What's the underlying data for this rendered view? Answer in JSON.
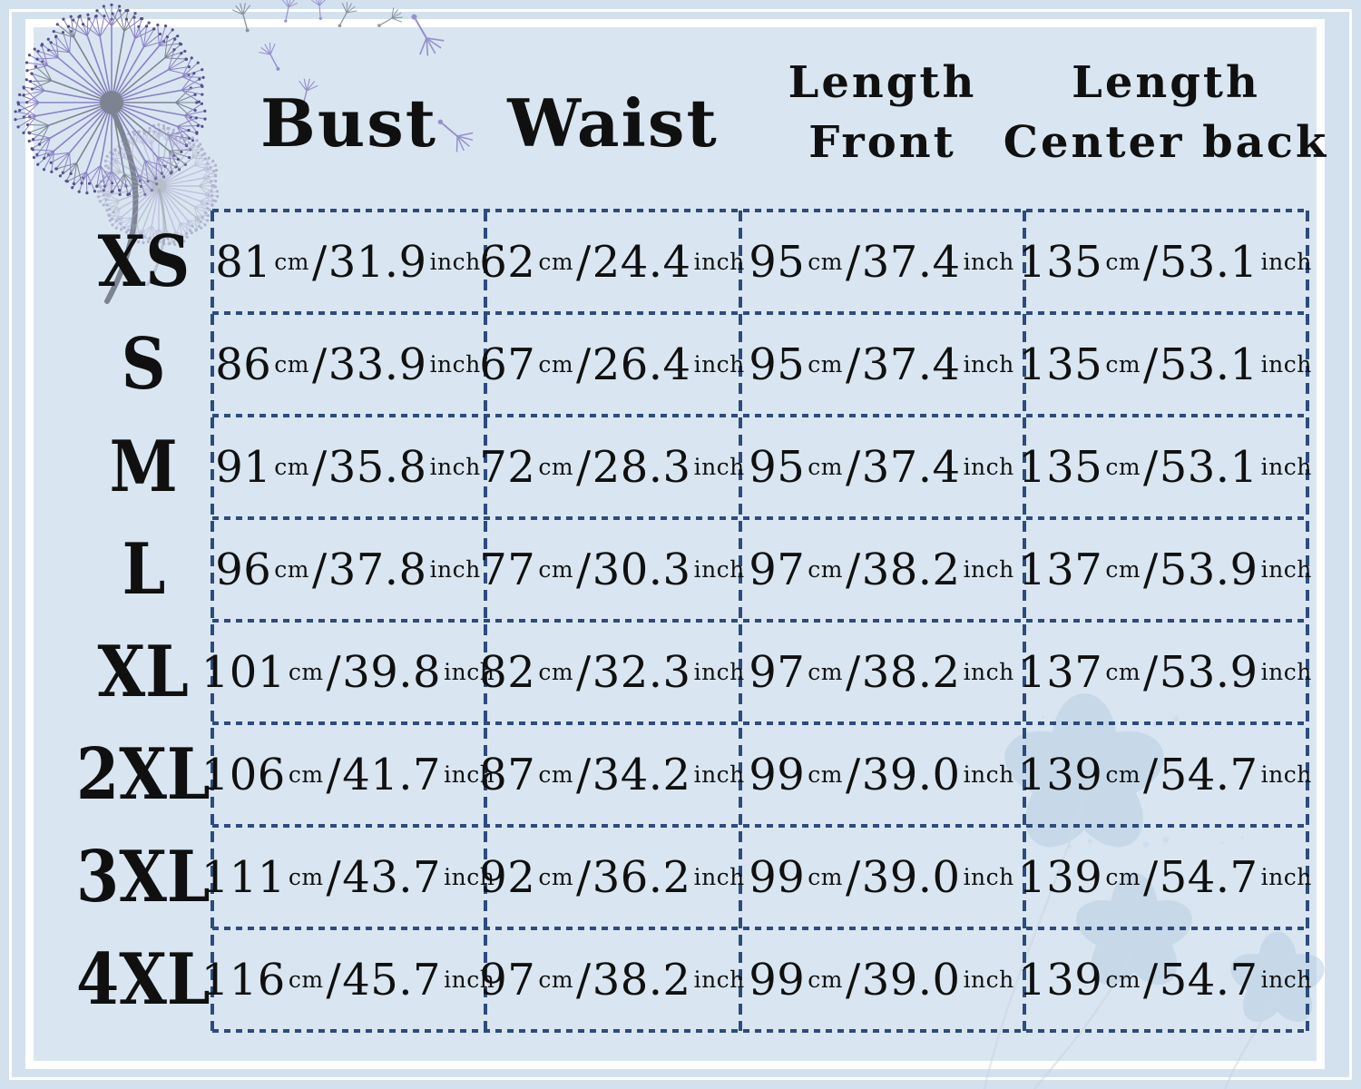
{
  "colors": {
    "background": "#d3e1ef",
    "panel": "#d9e6f2",
    "frame": "#ffffff",
    "grid": "#2e4b7c",
    "text": "#101010",
    "purple": "#8b82c4",
    "gray": "#7c8492",
    "dot_purple": "#55508a",
    "watermark": "#b9cfe2",
    "watermark_stem": "#c6cfd9"
  },
  "units": {
    "cm": "cm",
    "inch": "inch",
    "slash": "/"
  },
  "decor": {
    "top_left": "dandelion-illustration",
    "floating": "dandelion-seeds",
    "bottom_right": "flower-watermark"
  },
  "table": {
    "column_headers": [
      {
        "lines": [
          "Bust"
        ]
      },
      {
        "lines": [
          "Waist"
        ]
      },
      {
        "lines": [
          "Length",
          "Front"
        ]
      },
      {
        "lines": [
          "Length",
          "Center back"
        ]
      }
    ],
    "rows": [
      {
        "size": "XS",
        "cells": [
          {
            "cm": "81",
            "inch": "31.9"
          },
          {
            "cm": "62",
            "inch": "24.4"
          },
          {
            "cm": "95",
            "inch": "37.4"
          },
          {
            "cm": "135",
            "inch": "53.1"
          }
        ]
      },
      {
        "size": "S",
        "cells": [
          {
            "cm": "86",
            "inch": "33.9"
          },
          {
            "cm": "67",
            "inch": "26.4"
          },
          {
            "cm": "95",
            "inch": "37.4"
          },
          {
            "cm": "135",
            "inch": "53.1"
          }
        ]
      },
      {
        "size": "M",
        "cells": [
          {
            "cm": "91",
            "inch": "35.8"
          },
          {
            "cm": "72",
            "inch": "28.3"
          },
          {
            "cm": "95",
            "inch": "37.4"
          },
          {
            "cm": "135",
            "inch": "53.1"
          }
        ]
      },
      {
        "size": "L",
        "cells": [
          {
            "cm": "96",
            "inch": "37.8"
          },
          {
            "cm": "77",
            "inch": "30.3"
          },
          {
            "cm": "97",
            "inch": "38.2"
          },
          {
            "cm": "137",
            "inch": "53.9"
          }
        ]
      },
      {
        "size": "XL",
        "cells": [
          {
            "cm": "101",
            "inch": "39.8"
          },
          {
            "cm": "82",
            "inch": "32.3"
          },
          {
            "cm": "97",
            "inch": "38.2"
          },
          {
            "cm": "137",
            "inch": "53.9"
          }
        ]
      },
      {
        "size": "2XL",
        "cells": [
          {
            "cm": "106",
            "inch": "41.7"
          },
          {
            "cm": "87",
            "inch": "34.2"
          },
          {
            "cm": "99",
            "inch": "39.0"
          },
          {
            "cm": "139",
            "inch": "54.7"
          }
        ]
      },
      {
        "size": "3XL",
        "cells": [
          {
            "cm": "111",
            "inch": "43.7"
          },
          {
            "cm": "92",
            "inch": "36.2"
          },
          {
            "cm": "99",
            "inch": "39.0"
          },
          {
            "cm": "139",
            "inch": "54.7"
          }
        ]
      },
      {
        "size": "4XL",
        "cells": [
          {
            "cm": "116",
            "inch": "45.7"
          },
          {
            "cm": "97",
            "inch": "38.2"
          },
          {
            "cm": "99",
            "inch": "39.0"
          },
          {
            "cm": "139",
            "inch": "54.7"
          }
        ]
      }
    ]
  }
}
